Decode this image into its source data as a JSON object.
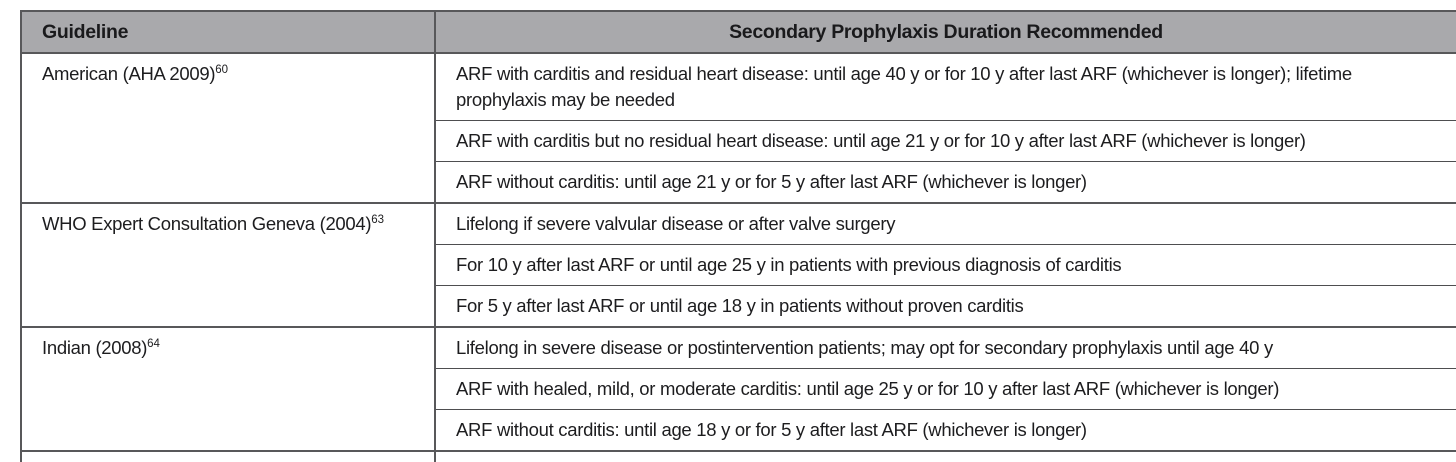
{
  "table": {
    "headers": [
      "Guideline",
      "Secondary Prophylaxis Duration Recommended"
    ],
    "groups": [
      {
        "guideline": "American (AHA 2009)",
        "ref": "60",
        "items": [
          "ARF with carditis and residual heart disease: until age 40 y or for 10 y after last ARF (whichever is longer); lifetime prophylaxis may be needed",
          "ARF with carditis but no residual heart disease: until age 21 y or for 10 y after last ARF (whichever is longer)",
          "ARF without carditis: until age 21 y or for 5 y after last ARF (whichever is longer)"
        ]
      },
      {
        "guideline": "WHO Expert Consultation Geneva (2004)",
        "ref": "63",
        "items": [
          "Lifelong if severe valvular disease or after valve surgery",
          "For 10 y after last ARF or until age 25 y in patients with previous diagnosis of carditis",
          "For 5 y after last ARF or until age 18 y in patients without proven carditis"
        ]
      },
      {
        "guideline": "Indian (2008)",
        "ref": "64",
        "items": [
          "Lifelong in severe disease or postintervention patients; may opt for secondary prophylaxis until age 40 y",
          "ARF with healed, mild, or moderate carditis: until age 25 y or for 10 y after last ARF (whichever is longer)",
          "ARF without carditis: until age 18 y or for 5 y after last ARF (whichever is longer)"
        ]
      }
    ],
    "colors": {
      "header_bg": "#a9a9ac",
      "border_dark": "#58585a",
      "border_thin": "#4e4e50",
      "text_color": "#1d1d1f",
      "page_bg": "#ffffff"
    }
  }
}
